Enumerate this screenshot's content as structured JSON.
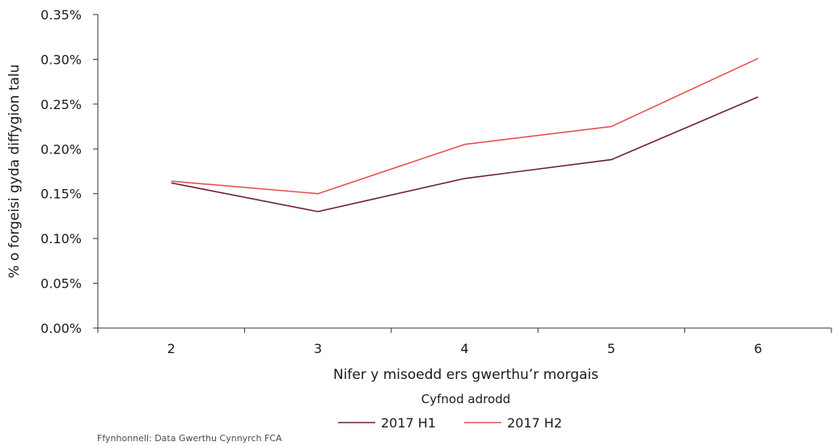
{
  "chart_data": {
    "type": "line",
    "x": [
      "2",
      "3",
      "4",
      "5",
      "6"
    ],
    "series": [
      {
        "name": "2017 H1",
        "values": [
          0.162,
          0.13,
          0.167,
          0.188,
          0.258
        ],
        "color": "#6b1e3f"
      },
      {
        "name": "2017 H2",
        "values": [
          0.164,
          0.15,
          0.205,
          0.225,
          0.301
        ],
        "color": "#e8514f"
      }
    ],
    "xlabel": "Nifer y misoedd ers gwerthu’r morgais",
    "ylabel": "% o forgeisi gyda diffygion talu",
    "ylim": [
      0,
      0.35
    ],
    "yticks": [
      "0.00%",
      "0.05%",
      "0.10%",
      "0.15%",
      "0.20%",
      "0.25%",
      "0.30%",
      "0.35%"
    ],
    "legend_title": "Cyfnod adrodd",
    "legend_position": "bottom",
    "grid": false
  },
  "source": "Ffynhonnell: Data Gwerthu Cynnyrch FCA"
}
